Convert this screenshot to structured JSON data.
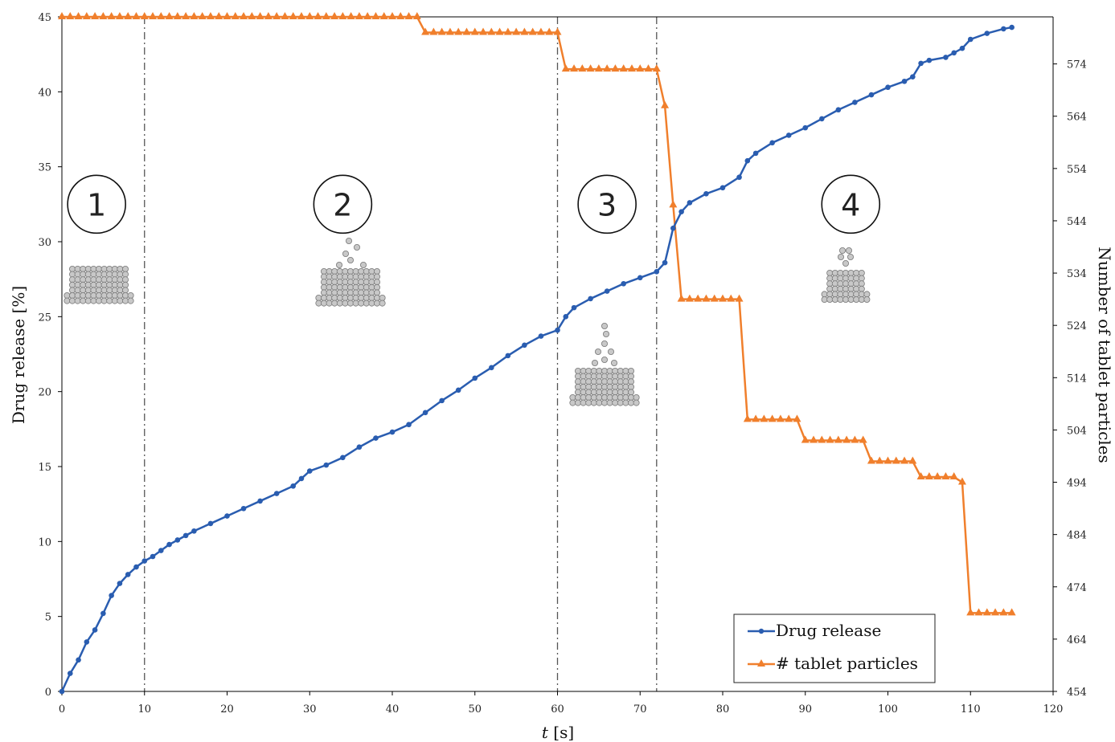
{
  "chart_data": {
    "type": "line",
    "xlabel": "t [s]",
    "xlabel_italic": "t",
    "xlabel_unit": "[s]",
    "ylabel_left": "Drug release [%]",
    "ylabel_right": "Number of tablet particles",
    "xlim": [
      0,
      120
    ],
    "ylim_left": [
      0,
      45
    ],
    "ylim_right": [
      454,
      583
    ],
    "x_ticks": [
      0,
      10,
      20,
      30,
      40,
      50,
      60,
      70,
      80,
      90,
      100,
      110,
      120
    ],
    "y_ticks_left": [
      0,
      5,
      10,
      15,
      20,
      25,
      30,
      35,
      40,
      45
    ],
    "y_ticks_right": [
      454,
      464,
      474,
      484,
      494,
      504,
      514,
      524,
      534,
      544,
      554,
      564,
      574
    ],
    "grid": false,
    "legend_position": "bottom-right",
    "colors": {
      "drug_release": "#2a5db0",
      "tablet_particles": "#f07f2c",
      "phase_line": "#555555"
    },
    "phase_boundaries": [
      10,
      60,
      72
    ],
    "phase_labels": [
      {
        "label": "1",
        "x": 4.2,
        "y": 32.5
      },
      {
        "label": "2",
        "x": 34,
        "y": 32.5
      },
      {
        "label": "3",
        "x": 66,
        "y": 32.5
      },
      {
        "label": "4",
        "x": 95.5,
        "y": 32.5
      }
    ],
    "series": [
      {
        "name": "Drug release",
        "axis": "left",
        "marker": "circle",
        "points": [
          [
            0,
            0
          ],
          [
            1,
            1.2
          ],
          [
            2,
            2.1
          ],
          [
            3,
            3.3
          ],
          [
            4,
            4.1
          ],
          [
            5,
            5.2
          ],
          [
            6,
            6.4
          ],
          [
            7,
            7.2
          ],
          [
            8,
            7.8
          ],
          [
            9,
            8.3
          ],
          [
            10,
            8.7
          ],
          [
            11,
            9.0
          ],
          [
            12,
            9.4
          ],
          [
            13,
            9.8
          ],
          [
            14,
            10.1
          ],
          [
            15,
            10.4
          ],
          [
            16,
            10.7
          ],
          [
            18,
            11.2
          ],
          [
            20,
            11.7
          ],
          [
            22,
            12.2
          ],
          [
            24,
            12.7
          ],
          [
            26,
            13.2
          ],
          [
            28,
            13.7
          ],
          [
            29,
            14.2
          ],
          [
            30,
            14.7
          ],
          [
            32,
            15.1
          ],
          [
            34,
            15.6
          ],
          [
            36,
            16.3
          ],
          [
            38,
            16.9
          ],
          [
            40,
            17.3
          ],
          [
            42,
            17.8
          ],
          [
            44,
            18.6
          ],
          [
            46,
            19.4
          ],
          [
            48,
            20.1
          ],
          [
            50,
            20.9
          ],
          [
            52,
            21.6
          ],
          [
            54,
            22.4
          ],
          [
            56,
            23.1
          ],
          [
            58,
            23.7
          ],
          [
            60,
            24.1
          ],
          [
            61,
            25.0
          ],
          [
            62,
            25.6
          ],
          [
            64,
            26.2
          ],
          [
            66,
            26.7
          ],
          [
            68,
            27.2
          ],
          [
            70,
            27.6
          ],
          [
            72,
            28.0
          ],
          [
            73,
            28.6
          ],
          [
            74,
            30.9
          ],
          [
            75,
            32.0
          ],
          [
            76,
            32.6
          ],
          [
            78,
            33.2
          ],
          [
            80,
            33.6
          ],
          [
            82,
            34.3
          ],
          [
            83,
            35.4
          ],
          [
            84,
            35.9
          ],
          [
            86,
            36.6
          ],
          [
            88,
            37.1
          ],
          [
            90,
            37.6
          ],
          [
            92,
            38.2
          ],
          [
            94,
            38.8
          ],
          [
            96,
            39.3
          ],
          [
            98,
            39.8
          ],
          [
            100,
            40.3
          ],
          [
            102,
            40.7
          ],
          [
            103,
            41.0
          ],
          [
            104,
            41.9
          ],
          [
            105,
            42.1
          ],
          [
            107,
            42.3
          ],
          [
            108,
            42.6
          ],
          [
            109,
            42.9
          ],
          [
            110,
            43.5
          ],
          [
            112,
            43.9
          ],
          [
            114,
            44.2
          ],
          [
            115,
            44.3
          ]
        ]
      },
      {
        "name": "# tablet particles",
        "axis": "right",
        "marker": "triangle",
        "points": [
          [
            0,
            584
          ],
          [
            43,
            584
          ],
          [
            44,
            580
          ],
          [
            60,
            580
          ],
          [
            61,
            573
          ],
          [
            72,
            573
          ],
          [
            73,
            566
          ],
          [
            74,
            547
          ],
          [
            75,
            529
          ],
          [
            82,
            529
          ],
          [
            83,
            506
          ],
          [
            89,
            506
          ],
          [
            90,
            502
          ],
          [
            97,
            502
          ],
          [
            98,
            498
          ],
          [
            103,
            498
          ],
          [
            104,
            495
          ],
          [
            108,
            495
          ],
          [
            109,
            494
          ],
          [
            110,
            469
          ],
          [
            115,
            469
          ]
        ]
      }
    ]
  }
}
